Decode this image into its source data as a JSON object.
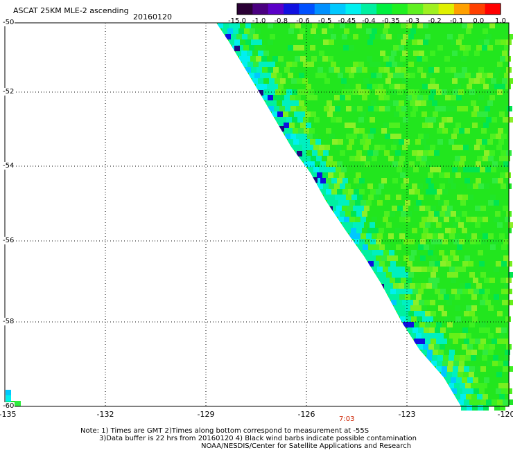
{
  "title": "ASCAT 25KM MLE-2 ascending",
  "date": "20160120",
  "colorbar": {
    "labels": [
      "-15.0",
      "-1.0",
      "-0.8",
      "-0.6",
      "-0.5",
      "-0.45",
      "-0.4",
      "-0.35",
      "-0.3",
      "-0.2",
      "-0.1",
      "0.0",
      "1.0"
    ],
    "colors": [
      "#2a0035",
      "#4a0080",
      "#5a00c8",
      "#1010e0",
      "#0050ff",
      "#0090ff",
      "#00c8ff",
      "#00f0f0",
      "#00f0a0",
      "#00f040",
      "#20f020",
      "#60f020",
      "#a0f020",
      "#e0f000",
      "#ffa000",
      "#ff4000",
      "#ff0000"
    ]
  },
  "axes": {
    "x_ticks": [
      "-135",
      "-132",
      "-129",
      "-126",
      "-123",
      "-120"
    ],
    "y_ticks": [
      "-50",
      "-52",
      "-54",
      "-56",
      "-58",
      "-60"
    ]
  },
  "swath_time": "7:03",
  "notes": [
    "Note: 1) Times are GMT 2)Times along bottom correspond to measurement at -55S",
    "3)Data buffer is 22 hrs from 20160120 4) Black wind barbs indicate possible contamination",
    "NOAA/NESDIS/Center for Satellite Applications and Research"
  ]
}
